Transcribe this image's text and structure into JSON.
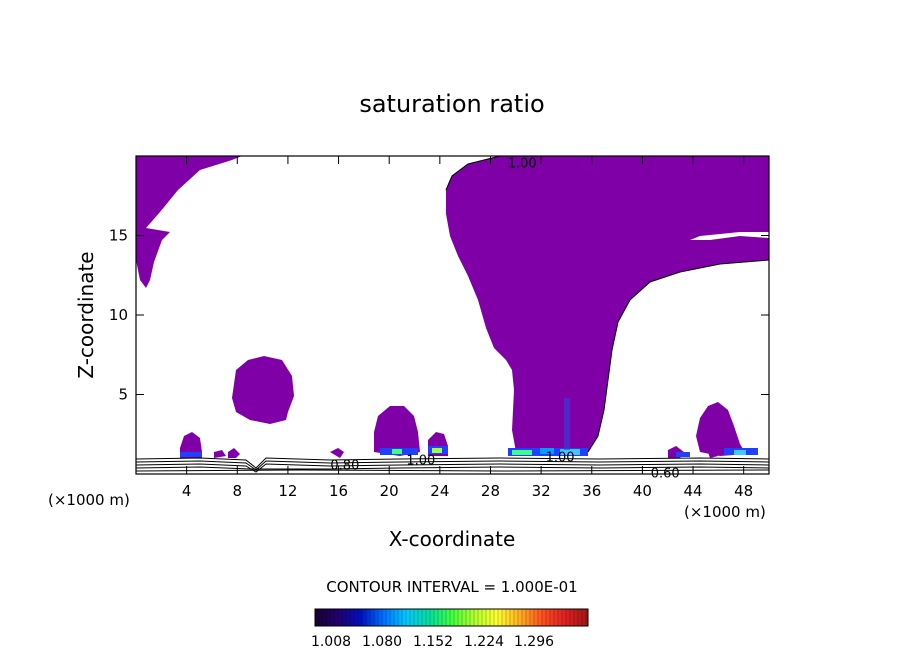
{
  "chart_data": {
    "type": "contour",
    "title": "saturation ratio",
    "xlabel": "X-coordinate",
    "ylabel": "Z-coordinate",
    "x_unit_left": "(×1000 m)",
    "x_unit_right": "(×1000 m)",
    "xlim": [
      0,
      50
    ],
    "ylim": [
      0,
      20
    ],
    "x_ticks": [
      "4",
      "8",
      "12",
      "16",
      "20",
      "24",
      "28",
      "32",
      "36",
      "40",
      "44",
      "48"
    ],
    "y_ticks": [
      "5",
      "10",
      "15"
    ],
    "contour_labels": [
      {
        "text": "1.00",
        "x": 30.5,
        "y": 19.6
      },
      {
        "text": "0.80",
        "x": 16.5,
        "y": 0.6
      },
      {
        "text": "1.00",
        "x": 22.5,
        "y": 0.9
      },
      {
        "text": "1.00",
        "x": 33.5,
        "y": 1.1
      },
      {
        "text": "0.60",
        "x": 41.8,
        "y": 0.1
      }
    ],
    "contour_interval_text": "CONTOUR INTERVAL = 1.000E-01",
    "colorbar": {
      "ticks": [
        "1.008",
        "1.080",
        "1.152",
        "1.224",
        "1.296"
      ],
      "colors": [
        "#1a0030",
        "#220070",
        "#0010c0",
        "#0070ff",
        "#00c8ff",
        "#00e0a0",
        "#40ff40",
        "#b0ff30",
        "#ffff30",
        "#ffb020",
        "#ff5020",
        "#e02020",
        "#a01818"
      ]
    },
    "region_color": "#8000a8",
    "grid": false
  }
}
